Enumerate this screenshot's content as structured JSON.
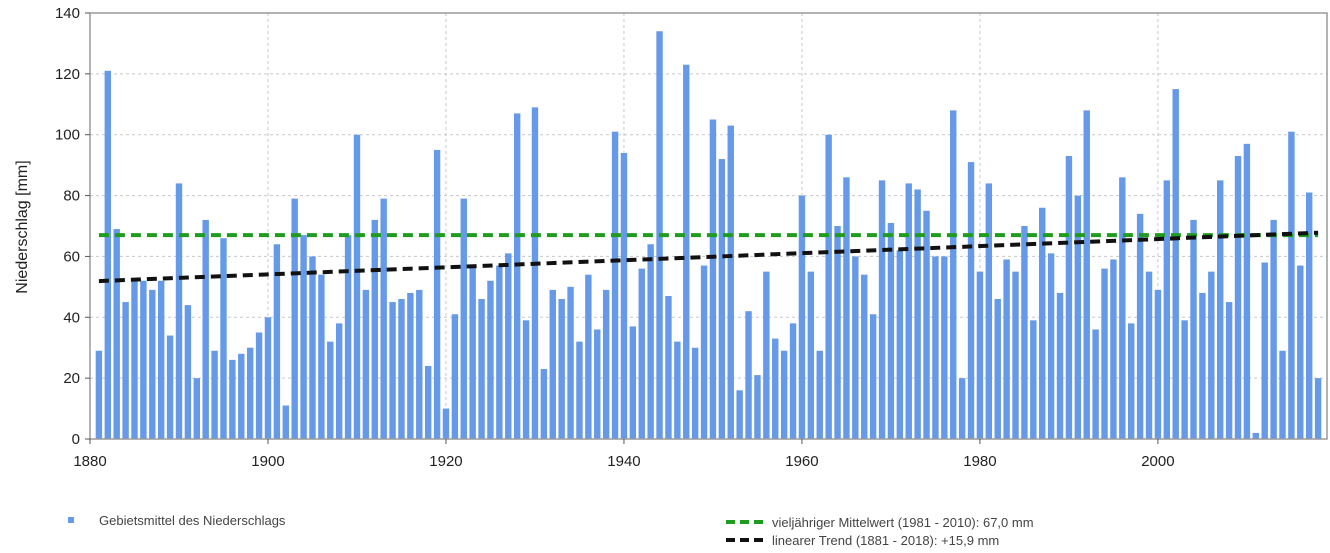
{
  "chart_data": {
    "type": "bar",
    "ylabel": "Niederschlag [mm]",
    "xlabel": "",
    "xlim": [
      1880,
      2019
    ],
    "ylim": [
      0,
      140
    ],
    "x_ticks": [
      "1880",
      "1900",
      "1920",
      "1940",
      "1960",
      "1980",
      "2000"
    ],
    "y_ticks": [
      "0",
      "20",
      "40",
      "60",
      "80",
      "100",
      "120",
      "140"
    ],
    "grid": true,
    "colors": {
      "bars": "#6699e8",
      "mean": "#1f9c1f",
      "trend": "#111111",
      "axis": "#9a9a9a",
      "grid": "#c8c8c8"
    },
    "series": [
      {
        "name": "Gebietsmittel des Niederschlags",
        "x": [
          1881,
          1882,
          1883,
          1884,
          1885,
          1886,
          1887,
          1888,
          1889,
          1890,
          1891,
          1892,
          1893,
          1894,
          1895,
          1896,
          1897,
          1898,
          1899,
          1900,
          1901,
          1902,
          1903,
          1904,
          1905,
          1906,
          1907,
          1908,
          1909,
          1910,
          1911,
          1912,
          1913,
          1914,
          1915,
          1916,
          1917,
          1918,
          1919,
          1920,
          1921,
          1922,
          1923,
          1924,
          1925,
          1926,
          1927,
          1928,
          1929,
          1930,
          1931,
          1932,
          1933,
          1934,
          1935,
          1936,
          1937,
          1938,
          1939,
          1940,
          1941,
          1942,
          1943,
          1944,
          1945,
          1946,
          1947,
          1948,
          1949,
          1950,
          1951,
          1952,
          1953,
          1954,
          1955,
          1956,
          1957,
          1958,
          1959,
          1960,
          1961,
          1962,
          1963,
          1964,
          1965,
          1966,
          1967,
          1968,
          1969,
          1970,
          1971,
          1972,
          1973,
          1974,
          1975,
          1976,
          1977,
          1978,
          1979,
          1980,
          1981,
          1982,
          1983,
          1984,
          1985,
          1986,
          1987,
          1988,
          1989,
          1990,
          1991,
          1992,
          1993,
          1994,
          1995,
          1996,
          1997,
          1998,
          1999,
          2000,
          2001,
          2002,
          2003,
          2004,
          2005,
          2006,
          2007,
          2008,
          2009,
          2010,
          2011,
          2012,
          2013,
          2014,
          2015,
          2016,
          2017,
          2018
        ],
        "values": [
          29,
          121,
          69,
          45,
          52,
          52,
          49,
          52,
          34,
          84,
          44,
          20,
          72,
          29,
          66,
          26,
          28,
          30,
          35,
          40,
          64,
          11,
          79,
          67,
          60,
          54,
          32,
          38,
          67,
          100,
          49,
          72,
          79,
          45,
          46,
          48,
          49,
          24,
          95,
          10,
          41,
          79,
          57,
          46,
          52,
          57,
          61,
          107,
          39,
          109,
          23,
          49,
          46,
          50,
          32,
          54,
          36,
          49,
          101,
          94,
          37,
          56,
          64,
          134,
          47,
          32,
          123,
          30,
          57,
          105,
          92,
          103,
          16,
          42,
          21,
          55,
          33,
          29,
          38,
          80,
          55,
          29,
          100,
          70,
          86,
          60,
          54,
          41,
          85,
          71,
          62,
          84,
          82,
          75,
          60,
          60,
          108,
          20,
          91,
          55,
          84,
          46,
          59,
          55,
          70,
          39,
          76,
          61,
          48,
          93,
          80,
          108,
          36,
          56,
          59,
          86,
          38,
          74,
          55,
          49,
          85,
          115,
          39,
          72,
          48,
          55,
          85,
          45,
          93,
          97,
          2,
          58,
          72,
          29,
          101,
          57,
          81,
          20
        ]
      },
      {
        "name": "vieljähriger Mittelwert (1981 - 2010): 67,0 mm",
        "x": [
          1881,
          2018
        ],
        "values": [
          67.0,
          67.0
        ]
      },
      {
        "name": "linearer Trend (1881 - 2018): +15,9 mm",
        "x": [
          1881,
          2018
        ],
        "values": [
          51.9,
          67.8
        ]
      }
    ],
    "legend": {
      "bars_label": "Gebietsmittel des Niederschlags",
      "mean_label": "vieljähriger Mittelwert (1981 - 2010): 67,0 mm",
      "trend_label": "linearer Trend (1881 - 2018): +15,9 mm"
    }
  }
}
